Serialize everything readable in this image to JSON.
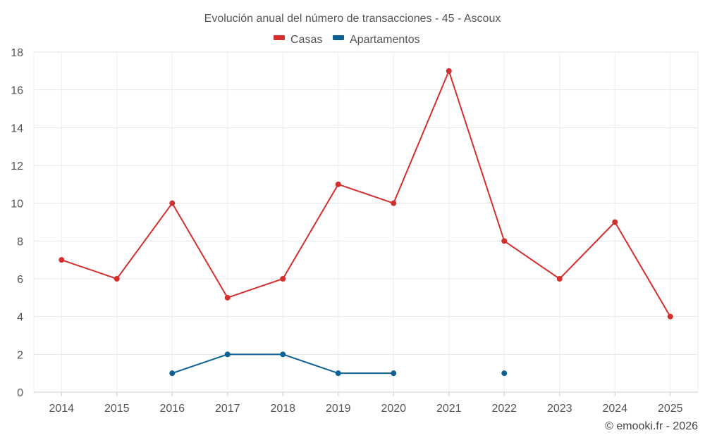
{
  "chart_data": {
    "type": "line",
    "title": "Evolución anual del número de transacciones - 45 - Ascoux",
    "categories": [
      "2014",
      "2015",
      "2016",
      "2017",
      "2018",
      "2019",
      "2020",
      "2021",
      "2022",
      "2023",
      "2024",
      "2025"
    ],
    "ylim": [
      0,
      18
    ],
    "yticks": [
      0,
      2,
      4,
      6,
      8,
      10,
      12,
      14,
      16,
      18
    ],
    "ytick_labels": [
      "0",
      "2",
      "4",
      "6",
      "8",
      "10",
      "12",
      "14",
      "16",
      "18"
    ],
    "grid": true,
    "legend_position": "top-center",
    "series": [
      {
        "name": "Casas",
        "color": "#d32f2f",
        "values": [
          7,
          6,
          10,
          5,
          6,
          11,
          10,
          17,
          8,
          6,
          9,
          4
        ]
      },
      {
        "name": "Apartamentos",
        "color": "#0d6194",
        "values": [
          null,
          null,
          1,
          2,
          2,
          1,
          1,
          null,
          1,
          null,
          null,
          null
        ]
      }
    ],
    "credit": "© emooki.fr - 2026"
  }
}
